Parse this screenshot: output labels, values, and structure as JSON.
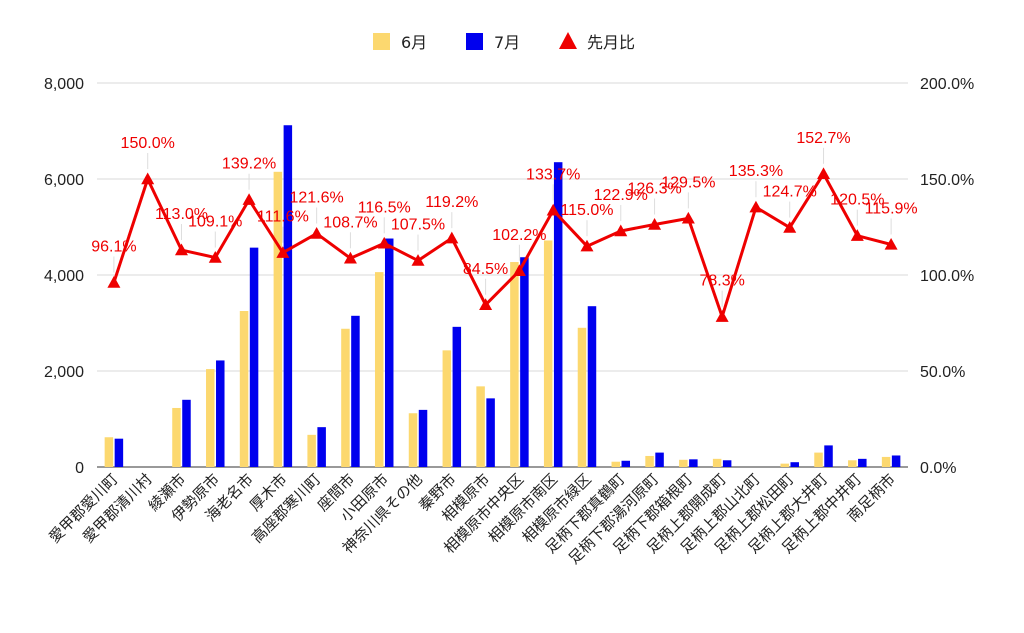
{
  "chart_data": {
    "type": "bar",
    "categories": [
      "愛甲郡愛川町",
      "愛甲郡清川村",
      "綾瀬市",
      "伊勢原市",
      "海老名市",
      "厚木市",
      "高座郡寒川町",
      "座間市",
      "小田原市",
      "神奈川県その他",
      "秦野市",
      "相模原市",
      "相模原市中央区",
      "相模原市南区",
      "相模原市緑区",
      "足柄下郡真鶴町",
      "足柄下郡湯河原町",
      "足柄下郡箱根町",
      "足柄上郡開成町",
      "足柄上郡山北町",
      "足柄上郡松田町",
      "足柄上郡大井町",
      "足柄上郡中井町",
      "南足柄市"
    ],
    "series": [
      {
        "name": "6月",
        "type": "bar",
        "axis": "left",
        "color": "#fcd86f",
        "values": [
          620,
          0,
          1230,
          2040,
          3250,
          6150,
          670,
          2880,
          4060,
          1120,
          2430,
          1680,
          4270,
          4720,
          2900,
          110,
          230,
          150,
          170,
          0,
          70,
          300,
          140,
          210
        ]
      },
      {
        "name": "7月",
        "type": "bar",
        "axis": "left",
        "color": "#0000ee",
        "values": [
          590,
          0,
          1400,
          2220,
          4570,
          7120,
          830,
          3150,
          4760,
          1190,
          2920,
          1430,
          4370,
          6350,
          3350,
          130,
          300,
          160,
          140,
          0,
          100,
          450,
          170,
          240
        ]
      },
      {
        "name": "先月比",
        "type": "line",
        "axis": "right",
        "color": "#ee0000",
        "values": [
          96.1,
          150.0,
          113.0,
          109.1,
          139.2,
          111.6,
          121.6,
          108.7,
          116.5,
          107.5,
          119.2,
          84.5,
          102.2,
          133.7,
          115.0,
          122.9,
          126.3,
          129.5,
          78.3,
          135.3,
          124.7,
          152.7,
          120.5,
          115.9
        ],
        "labels": [
          "96.1%",
          "150.0%",
          "113.0%",
          "109.1%",
          "139.2%",
          "111.6%",
          "121.6%",
          "108.7%",
          "116.5%",
          "107.5%",
          "119.2%",
          "84.5%",
          "102.2%",
          "133.7%",
          "115.0%",
          "122.9%",
          "126.3%",
          "129.5%",
          "78.3%",
          "135.3%",
          "124.7%",
          "152.7%",
          "120.5%",
          "115.9%"
        ]
      }
    ],
    "yaxis_left": {
      "min": 0,
      "max": 8000,
      "ticks": [
        "0",
        "2,000",
        "4,000",
        "6,000",
        "8,000"
      ]
    },
    "yaxis_right": {
      "min": 0,
      "max": 200,
      "ticks": [
        "0.0%",
        "50.0%",
        "100.0%",
        "150.0%",
        "200.0%"
      ]
    },
    "grid": true,
    "legend_position": "top-center",
    "title": "",
    "xlabel": "",
    "ylabel": ""
  }
}
